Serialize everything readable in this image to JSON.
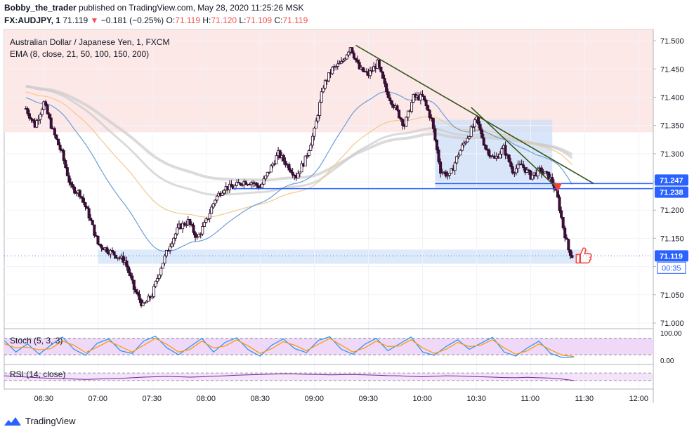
{
  "header": {
    "author": "Bobby_the_trader",
    "published_text": "published on TradingView.com, May 28, 2020 11:25:26 MSK",
    "symbol": "FX:AUDJPY, 1",
    "last": "71.119",
    "change": "−0.181 (−0.25%)",
    "o_label": "O:",
    "o": "71.119",
    "h_label": "H:",
    "h": "71.120",
    "l_label": "L:",
    "l": "71.109",
    "c_label": "C:",
    "c": "71.119"
  },
  "footer": {
    "brand": "TradingView",
    "logo_icon": "tradingview-logo-icon"
  },
  "colors": {
    "candle_up": "#ffffff",
    "candle_down": "#3d0f3a",
    "candle_outline": "#2a0a28",
    "resistance_zone": "#fde8e8",
    "box_zone": "#cfe0f7",
    "support_zone": "#d6e6f9",
    "trendline": "#33561a",
    "hline": "#2962ff",
    "ema_blue": "#6d9fd6",
    "ema_orange": "#f2c98a",
    "ema_gray": "#cccccc",
    "stoch_fill": "#f0d8f8",
    "stoch_k": "#2196f3",
    "stoch_d": "#ff9800",
    "rsi": "#7b1fa2",
    "price_tag": "#2962ff",
    "arrow": "#f44336"
  },
  "chart_data": [
    {
      "type": "candlestick",
      "title": "Australian Dollar / Japanese Yen, 1, FXCM",
      "indicator_label": "EMA (8, close, 21, 50, 100, 150, 200)",
      "x_ticks": [
        "06:30",
        "07:00",
        "07:30",
        "08:00",
        "08:30",
        "09:00",
        "09:30",
        "10:00",
        "10:30",
        "11:00",
        "11:30",
        "12:00"
      ],
      "y_ticks": [
        "71.500",
        "71.450",
        "71.400",
        "71.350",
        "71.300",
        "71.250",
        "71.200",
        "71.150",
        "71.100",
        "71.050",
        "71.000"
      ],
      "ylim": [
        70.99,
        71.52
      ],
      "price_labels": [
        {
          "value": "71.247",
          "level": 71.247
        },
        {
          "value": "71.238",
          "level": 71.238
        },
        {
          "value": "71.119",
          "level": 71.119
        }
      ],
      "countdown": "00:35",
      "resistance_zone": {
        "from": 71.338,
        "to": 71.52
      },
      "support_zone": {
        "from": 71.105,
        "to": 71.13,
        "start": "07:00",
        "end": "11:32"
      },
      "consolidation_box": {
        "from": 71.24,
        "to": 71.36,
        "start": "10:07",
        "end": "11:12"
      },
      "trendlines": [
        {
          "from": {
            "time": "09:23",
            "price": 71.492
          },
          "to": {
            "time": "11:35",
            "price": 71.247
          }
        },
        {
          "from": {
            "time": "10:27",
            "price": 71.382
          },
          "to": {
            "time": "11:15",
            "price": 71.238
          }
        }
      ],
      "horizontal_lines": [
        {
          "price": 71.247,
          "start": "10:07",
          "end": "11:35"
        },
        {
          "price": 71.238,
          "start": "08:15",
          "end": "11:15"
        }
      ],
      "price_path": [
        {
          "time": "06:20",
          "price": 71.38
        },
        {
          "time": "06:25",
          "price": 71.35
        },
        {
          "time": "06:30",
          "price": 71.39
        },
        {
          "time": "06:35",
          "price": 71.34
        },
        {
          "time": "06:40",
          "price": 71.3
        },
        {
          "time": "06:45",
          "price": 71.24
        },
        {
          "time": "06:50",
          "price": 71.23
        },
        {
          "time": "06:55",
          "price": 71.19
        },
        {
          "time": "07:00",
          "price": 71.14
        },
        {
          "time": "07:05",
          "price": 71.13
        },
        {
          "time": "07:10",
          "price": 71.12
        },
        {
          "time": "07:15",
          "price": 71.11
        },
        {
          "time": "07:20",
          "price": 71.06
        },
        {
          "time": "07:25",
          "price": 71.03
        },
        {
          "time": "07:30",
          "price": 71.05
        },
        {
          "time": "07:35",
          "price": 71.1
        },
        {
          "time": "07:40",
          "price": 71.14
        },
        {
          "time": "07:45",
          "price": 71.17
        },
        {
          "time": "07:50",
          "price": 71.18
        },
        {
          "time": "07:55",
          "price": 71.15
        },
        {
          "time": "08:00",
          "price": 71.18
        },
        {
          "time": "08:05",
          "price": 71.22
        },
        {
          "time": "08:10",
          "price": 71.24
        },
        {
          "time": "08:15",
          "price": 71.24
        },
        {
          "time": "08:20",
          "price": 71.25
        },
        {
          "time": "08:25",
          "price": 71.25
        },
        {
          "time": "08:30",
          "price": 71.24
        },
        {
          "time": "08:35",
          "price": 71.27
        },
        {
          "time": "08:40",
          "price": 71.3
        },
        {
          "time": "08:45",
          "price": 71.28
        },
        {
          "time": "08:50",
          "price": 71.26
        },
        {
          "time": "08:55",
          "price": 71.29
        },
        {
          "time": "09:00",
          "price": 71.34
        },
        {
          "time": "09:05",
          "price": 71.42
        },
        {
          "time": "09:10",
          "price": 71.45
        },
        {
          "time": "09:15",
          "price": 71.46
        },
        {
          "time": "09:20",
          "price": 71.49
        },
        {
          "time": "09:25",
          "price": 71.45
        },
        {
          "time": "09:30",
          "price": 71.44
        },
        {
          "time": "09:35",
          "price": 71.46
        },
        {
          "time": "09:40",
          "price": 71.41
        },
        {
          "time": "09:45",
          "price": 71.38
        },
        {
          "time": "09:50",
          "price": 71.35
        },
        {
          "time": "09:55",
          "price": 71.4
        },
        {
          "time": "10:00",
          "price": 71.4
        },
        {
          "time": "10:05",
          "price": 71.36
        },
        {
          "time": "10:10",
          "price": 71.27
        },
        {
          "time": "10:15",
          "price": 71.26
        },
        {
          "time": "10:20",
          "price": 71.3
        },
        {
          "time": "10:25",
          "price": 71.33
        },
        {
          "time": "10:30",
          "price": 71.36
        },
        {
          "time": "10:35",
          "price": 71.31
        },
        {
          "time": "10:40",
          "price": 71.29
        },
        {
          "time": "10:45",
          "price": 71.31
        },
        {
          "time": "10:50",
          "price": 71.27
        },
        {
          "time": "10:55",
          "price": 71.28
        },
        {
          "time": "11:00",
          "price": 71.26
        },
        {
          "time": "11:05",
          "price": 71.27
        },
        {
          "time": "11:10",
          "price": 71.26
        },
        {
          "time": "11:12",
          "price": 71.25
        },
        {
          "time": "11:15",
          "price": 71.22
        },
        {
          "time": "11:18",
          "price": 71.17
        },
        {
          "time": "11:21",
          "price": 71.13
        },
        {
          "time": "11:23",
          "price": 71.119
        }
      ]
    },
    {
      "type": "line",
      "title": "Stoch (5, 3, 3)",
      "y_ticks": [
        "100.00",
        "0.00"
      ],
      "ylim": [
        0,
        100
      ],
      "bands": [
        80,
        20
      ],
      "series": [
        {
          "name": "%K",
          "values": [
            72,
            30,
            60,
            22,
            55,
            85,
            40,
            18,
            62,
            78,
            35,
            25,
            70,
            88,
            45,
            20,
            50,
            80,
            30,
            65,
            82,
            38,
            15,
            55,
            78,
            42,
            28,
            72,
            86,
            40,
            22,
            58,
            80,
            35,
            60,
            85,
            30,
            18,
            50,
            75,
            40,
            62,
            84,
            30,
            15,
            45,
            70,
            25,
            10,
            12
          ]
        },
        {
          "name": "%D",
          "values": [
            60,
            45,
            48,
            38,
            42,
            70,
            55,
            28,
            48,
            70,
            50,
            30,
            55,
            80,
            58,
            30,
            40,
            70,
            45,
            52,
            75,
            52,
            25,
            42,
            68,
            55,
            35,
            58,
            80,
            55,
            30,
            45,
            70,
            50,
            52,
            75,
            45,
            25,
            40,
            65,
            50,
            55,
            75,
            45,
            22,
            35,
            60,
            38,
            18,
            14
          ]
        }
      ]
    },
    {
      "type": "line",
      "title": "RSI (14, close)",
      "ylim": [
        0,
        100
      ],
      "bands": [
        70,
        30
      ],
      "series": [
        {
          "name": "RSI",
          "values": [
            55,
            52,
            48,
            45,
            42,
            40,
            38,
            36,
            38,
            40,
            42,
            45,
            48,
            50,
            52,
            50,
            48,
            50,
            53,
            55,
            58,
            60,
            62,
            64,
            66,
            65,
            63,
            62,
            60,
            61,
            62,
            60,
            58,
            56,
            55,
            52,
            50,
            53,
            55,
            54,
            52,
            50,
            48,
            46,
            45,
            47,
            45,
            43,
            38,
            30
          ]
        }
      ]
    }
  ]
}
